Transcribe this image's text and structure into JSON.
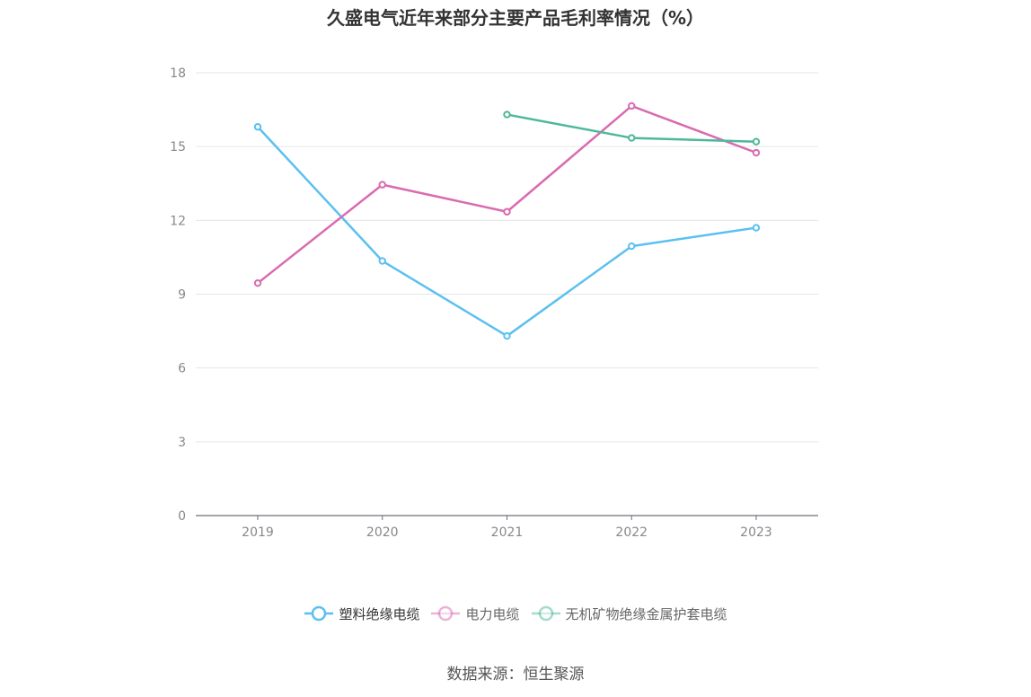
{
  "chart_data": {
    "type": "line",
    "title": "久盛电气近年来部分主要产品毛利率情况（%）",
    "categories": [
      "2019",
      "2020",
      "2021",
      "2022",
      "2023"
    ],
    "ylim": [
      0,
      18
    ],
    "yticks": [
      "0",
      "3",
      "6",
      "9",
      "12",
      "15",
      "18"
    ],
    "grid": true,
    "legend_position": "bottom",
    "series": [
      {
        "name": "塑料绝缘电缆",
        "color": "#5bc0f0",
        "values": [
          15.8,
          10.35,
          7.3,
          10.95,
          11.7
        ]
      },
      {
        "name": "电力电缆",
        "color": "#d96bb0",
        "values": [
          9.45,
          13.45,
          12.35,
          16.65,
          14.75
        ]
      },
      {
        "name": "无机矿物绝缘金属护套电缆",
        "color": "#4db89a",
        "values": [
          null,
          null,
          16.3,
          15.35,
          15.2
        ]
      }
    ]
  },
  "source": "数据来源：恒生聚源"
}
